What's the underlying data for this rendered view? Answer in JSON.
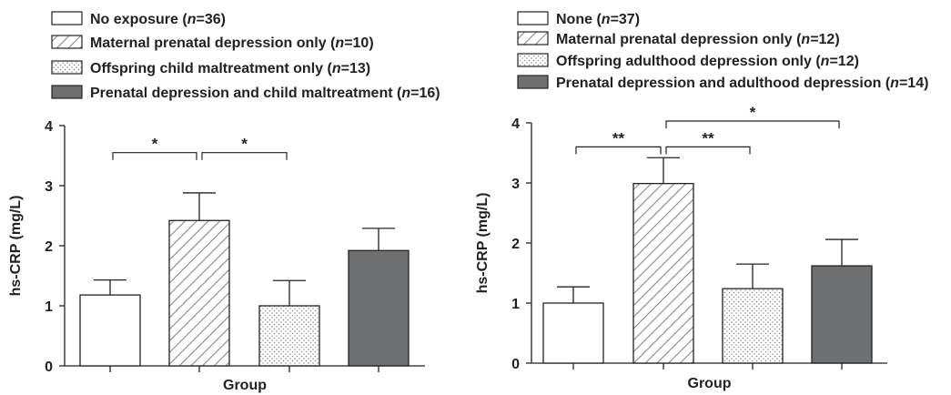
{
  "chart_data": [
    {
      "type": "bar",
      "categories": [
        "No exposure (n=36)",
        "Maternal prenatal depression only (n=10)",
        "Offspring child maltreatment only (n=13)",
        "Prenatal depression and child maltreatment (n=16)"
      ],
      "legend": [
        {
          "text": "No exposure (",
          "n": "n",
          "rest": "=36)",
          "fill": "white"
        },
        {
          "text": "Maternal prenatal depression only (",
          "n": "n",
          "rest": "=10)",
          "fill": "hatch"
        },
        {
          "text": "Offspring child maltreatment only (",
          "n": "n",
          "rest": "=13)",
          "fill": "dots"
        },
        {
          "text": "Prenatal depression and child maltreatment (",
          "n": "n",
          "rest": "=16)",
          "fill": "dark"
        }
      ],
      "values": [
        1.18,
        2.42,
        1.0,
        1.92
      ],
      "errors": [
        0.25,
        0.46,
        0.42,
        0.37
      ],
      "xlabel": "Group",
      "ylabel": "hs-CRP (mg/L)",
      "ylim": [
        0,
        4
      ],
      "yticks": [
        "0",
        "1",
        "2",
        "3",
        "4"
      ],
      "significance": [
        {
          "from": 0,
          "to": 1,
          "label": "*",
          "y": 3.55
        },
        {
          "from": 1,
          "to": 2,
          "label": "*",
          "y": 3.55
        }
      ],
      "legend_placement": "top-left",
      "grid": false
    },
    {
      "type": "bar",
      "categories": [
        "None (n=37)",
        "Maternal prenatal depression only (n=12)",
        "Offspring adulthood depression only (n=12)",
        "Prenatal depression and adulthood depression (n=14)"
      ],
      "legend": [
        {
          "text": "None (",
          "n": "n",
          "rest": "=37)",
          "fill": "white"
        },
        {
          "text": "Maternal prenatal depression only (",
          "n": "n",
          "rest": "=12)",
          "fill": "hatch"
        },
        {
          "text": "Offspring adulthood depression only (",
          "n": "n",
          "rest": "=12)",
          "fill": "dots"
        },
        {
          "text": "Prenatal depression and adulthood depression (",
          "n": "n",
          "rest": "=14)",
          "fill": "dark"
        }
      ],
      "values": [
        1.0,
        2.99,
        1.24,
        1.62
      ],
      "errors": [
        0.27,
        0.43,
        0.41,
        0.44
      ],
      "xlabel": "Group",
      "ylabel": "hs-CRP (mg/L)",
      "ylim": [
        0,
        4
      ],
      "yticks": [
        "0",
        "1",
        "2",
        "3",
        "4"
      ],
      "significance": [
        {
          "from": 0,
          "to": 1,
          "label": "**",
          "y": 3.6
        },
        {
          "from": 1,
          "to": 2,
          "label": "**",
          "y": 3.6
        },
        {
          "from": 1,
          "to": 3,
          "label": "*",
          "y": 4.03
        }
      ],
      "legend_placement": "top-left",
      "grid": false
    }
  ]
}
